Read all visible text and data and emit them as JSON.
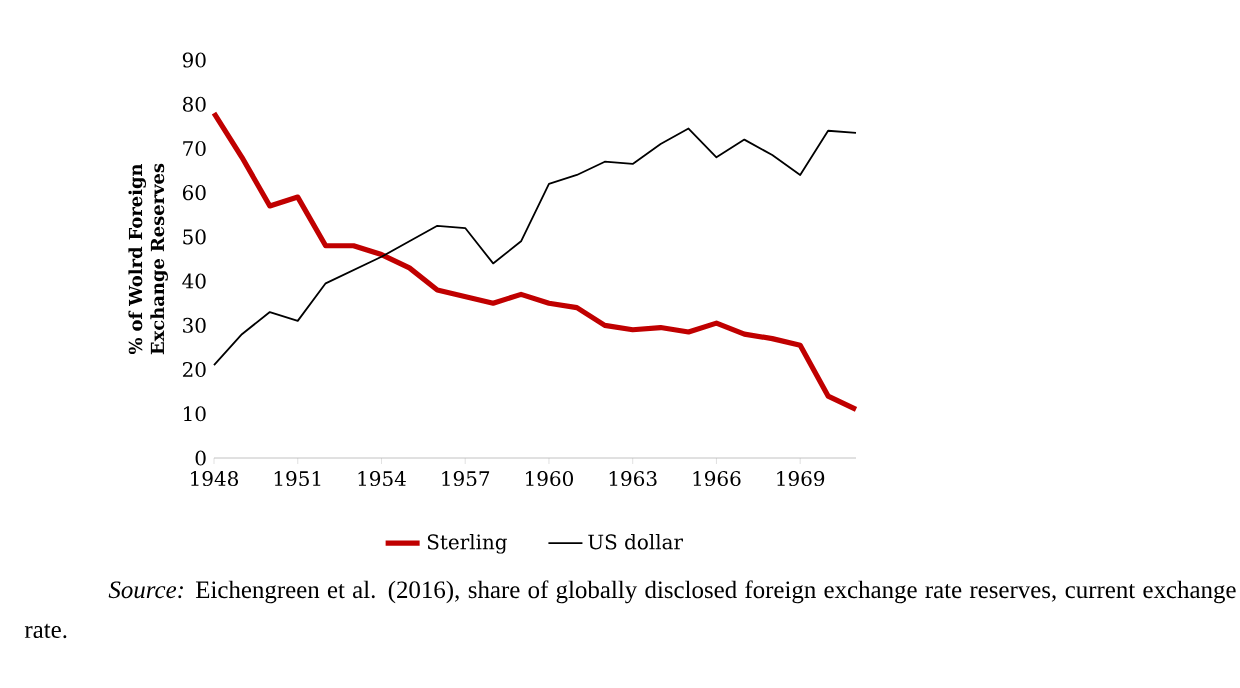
{
  "chart_data": {
    "type": "line",
    "ylabel": "% of Wolrd Foreign Exchange Reserves",
    "x": [
      1948,
      1949,
      1950,
      1951,
      1952,
      1953,
      1954,
      1955,
      1956,
      1957,
      1958,
      1959,
      1960,
      1961,
      1962,
      1963,
      1964,
      1965,
      1966,
      1967,
      1968,
      1969,
      1970,
      1971
    ],
    "series": [
      {
        "name": "Sterling",
        "color": "#c00000",
        "values": [
          78,
          68,
          57,
          59,
          48,
          48,
          46,
          43,
          38,
          36.5,
          35,
          37,
          35,
          34,
          30,
          29,
          29.5,
          28.5,
          30.5,
          28,
          27,
          25.5,
          14,
          11
        ]
      },
      {
        "name": "US dollar",
        "color": "#000000",
        "values": [
          21,
          28,
          33,
          31,
          39.5,
          42.5,
          45.5,
          49,
          52.5,
          52,
          44,
          49,
          62,
          64,
          67,
          66.5,
          71,
          74.5,
          68,
          72,
          68.5,
          64,
          74,
          73.5
        ]
      }
    ],
    "xlim": [
      1948,
      1971
    ],
    "xticks": [
      1948,
      1951,
      1954,
      1957,
      1960,
      1963,
      1966,
      1969
    ],
    "ylim": [
      0,
      90
    ],
    "yticks": [
      0,
      10,
      20,
      30,
      40,
      50,
      60,
      70,
      80,
      90
    ],
    "legend": "bottom",
    "grid": false,
    "marker": "none",
    "line_style": "solid",
    "annotations": [
      "*Source:* Eichengreen et al. (2016), share of globally disclosed foreign exchange rate reserves, current exchange rate."
    ]
  }
}
